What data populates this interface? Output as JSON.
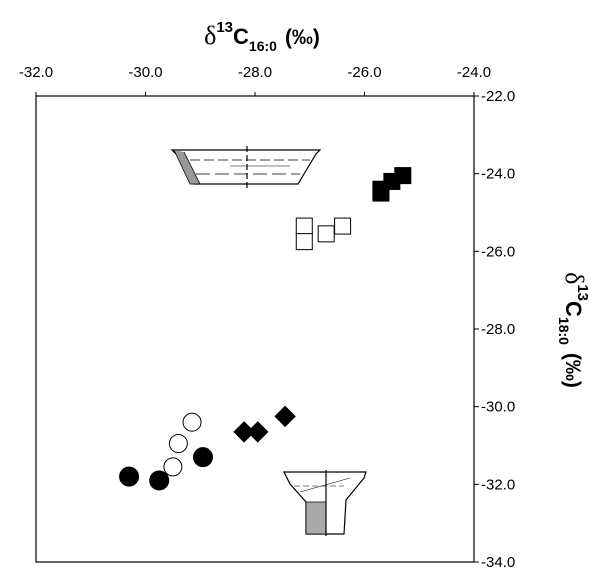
{
  "chart_data": {
    "type": "scatter",
    "title": "",
    "xlabel": {
      "delta": "δ",
      "sup": "13",
      "main": "C",
      "sub": "16:0",
      "unit": "(‰)"
    },
    "ylabel": {
      "delta": "δ",
      "sup": "13",
      "main": "C",
      "sub": "18:0",
      "unit": "(‰)"
    },
    "xlim": [
      -32.0,
      -24.0
    ],
    "ylim": [
      -34.0,
      -22.0
    ],
    "x_ticks": [
      "-32.0",
      "-30.0",
      "-28.0",
      "-26.0",
      "-24.0"
    ],
    "y_ticks": [
      "-22.0",
      "-24.0",
      "-26.0",
      "-28.0",
      "-30.0",
      "-32.0",
      "-34.0"
    ],
    "x_axis_position": "top",
    "y_axis_position": "right",
    "grid": false,
    "legend": "none; vessel-profile drawings placed beside the point clusters",
    "colors": {
      "ink": "#000000",
      "paper": "#ffffff"
    },
    "series": [
      {
        "marker": "filled-square",
        "points": [
          [
            -25.7,
            -24.5
          ],
          [
            -25.5,
            -24.2
          ],
          [
            -25.3,
            -24.05
          ],
          [
            -25.7,
            -24.4
          ]
        ]
      },
      {
        "marker": "open-square",
        "points": [
          [
            -27.1,
            -25.35
          ],
          [
            -27.1,
            -25.75
          ],
          [
            -26.7,
            -25.55
          ],
          [
            -26.4,
            -25.35
          ]
        ]
      },
      {
        "marker": "filled-diamond",
        "points": [
          [
            -28.2,
            -30.65
          ],
          [
            -27.95,
            -30.65
          ],
          [
            -27.45,
            -30.25
          ]
        ]
      },
      {
        "marker": "open-circle",
        "points": [
          [
            -29.15,
            -30.4
          ],
          [
            -29.4,
            -30.95
          ],
          [
            -29.5,
            -31.55
          ]
        ]
      },
      {
        "marker": "filled-circle",
        "points": [
          [
            -30.3,
            -31.8
          ],
          [
            -29.75,
            -31.9
          ],
          [
            -28.95,
            -31.3
          ]
        ]
      }
    ]
  }
}
